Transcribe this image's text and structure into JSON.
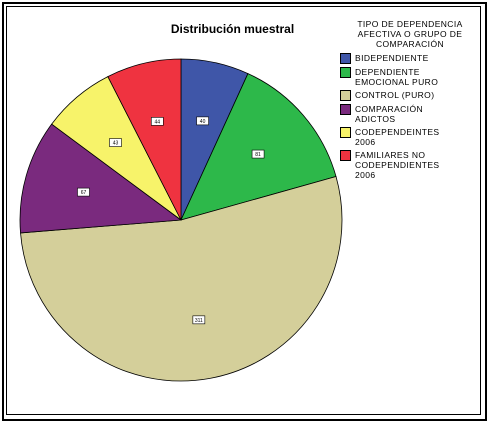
{
  "chart_data": {
    "type": "pie",
    "title": "Distribución muestral",
    "legend_title": "TIPO DE DEPENDENCIA AFECTIVA O GRUPO DE COMPARACIÓN",
    "categories": [
      "BIDEPENDIENTE",
      "DEPENDIENTE EMOCIONAL PURO",
      "CONTROL (PURO)",
      "COMPARACIÓN ADICTOS",
      "CODEPENDEINTES 2006",
      "FAMILIARES NO CODEPENDIENTES 2006"
    ],
    "values": [
      40,
      81,
      311,
      67,
      43,
      44
    ],
    "colors": [
      "#3f56a8",
      "#2db84a",
      "#d4cf9a",
      "#7a2a7e",
      "#f7f36a",
      "#ef3340"
    ],
    "legend_position": "right"
  }
}
